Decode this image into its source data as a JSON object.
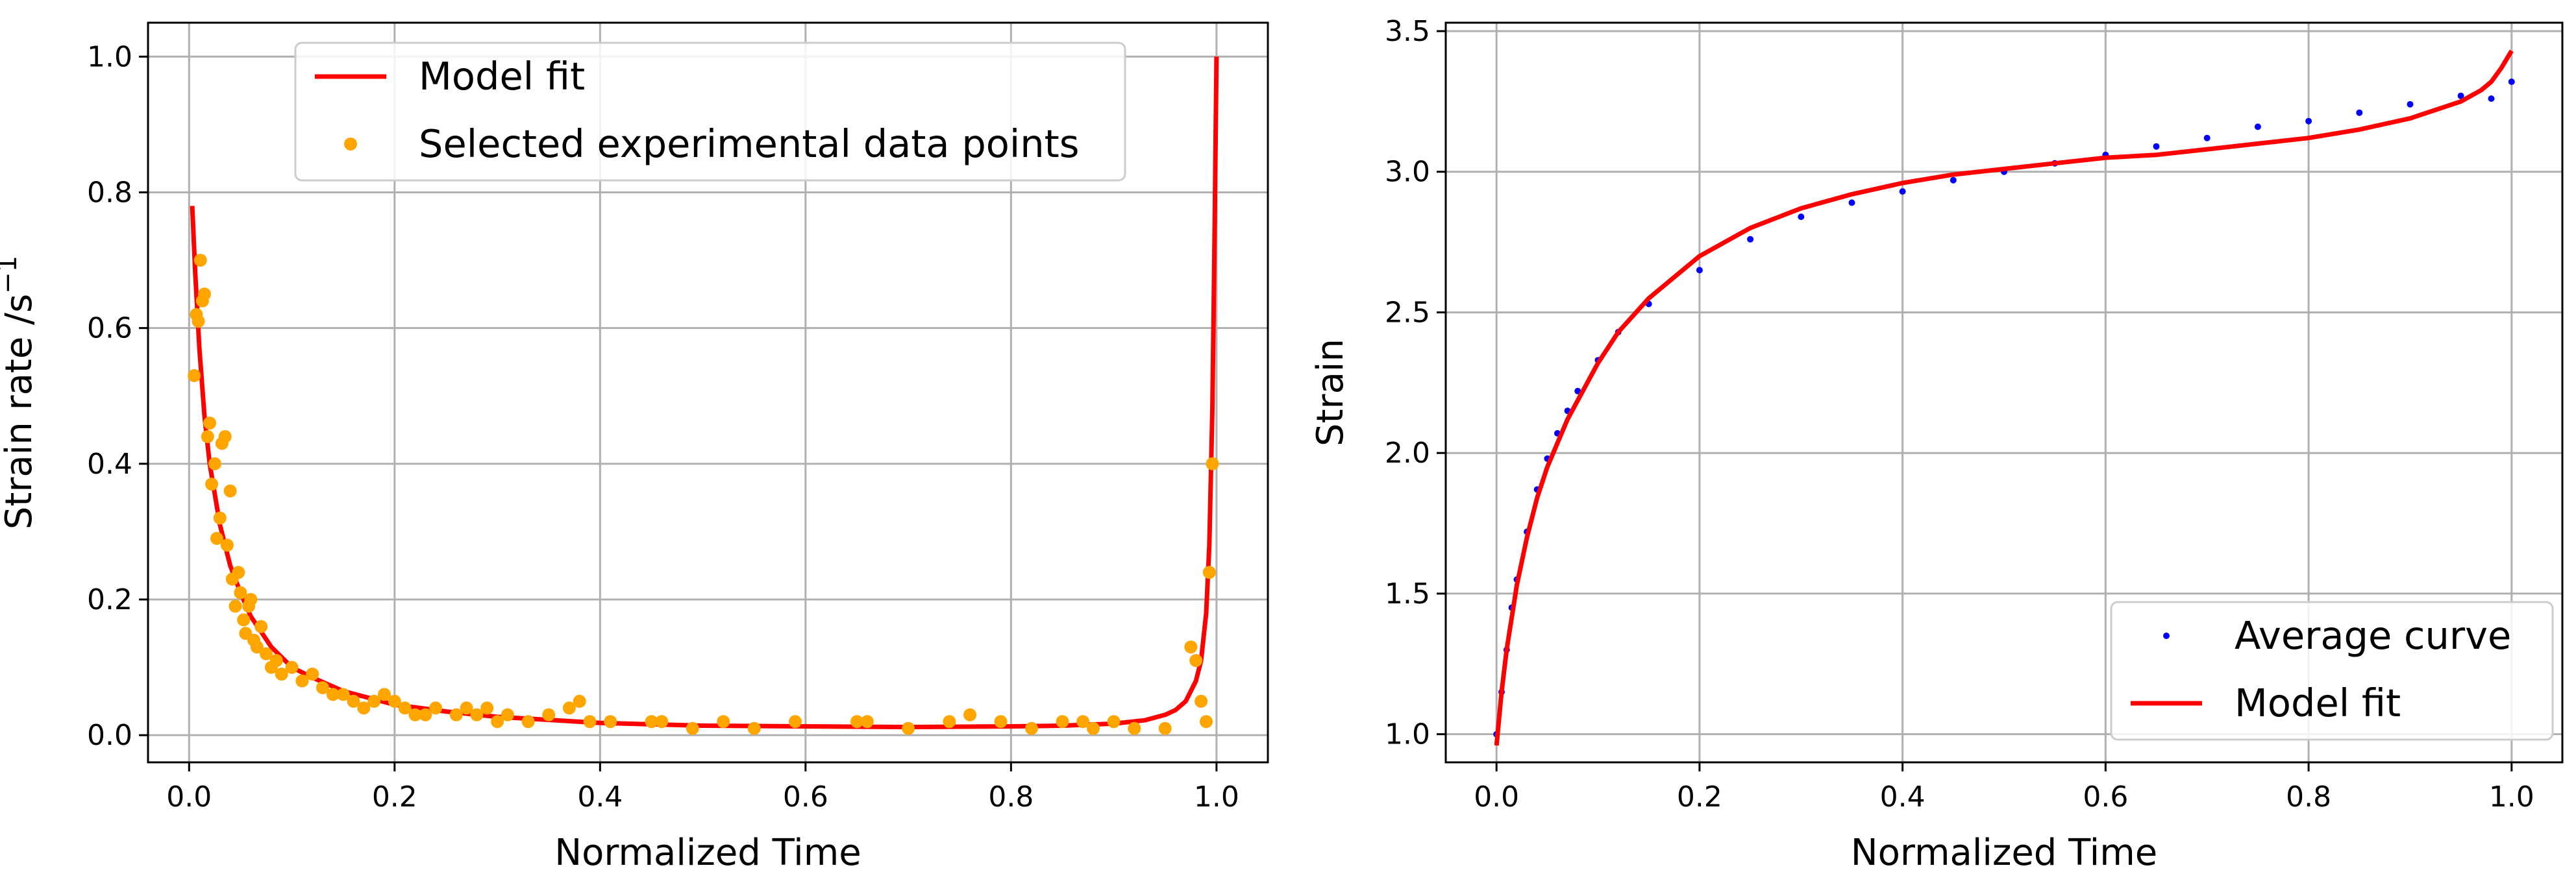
{
  "chart_data": [
    {
      "type": "line",
      "xlabel": "Normalized Time",
      "ylabel": "Strain rate /s",
      "ylabel_superscript": "−1",
      "xlim": [
        -0.04,
        1.05
      ],
      "ylim": [
        -0.04,
        1.05
      ],
      "xticks": [
        0.0,
        0.2,
        0.4,
        0.6,
        0.8,
        1.0
      ],
      "xtick_labels": [
        "0.0",
        "0.2",
        "0.4",
        "0.6",
        "0.8",
        "1.0"
      ],
      "yticks": [
        0.0,
        0.2,
        0.4,
        0.6,
        0.8,
        1.0
      ],
      "ytick_labels": [
        "0.0",
        "0.2",
        "0.4",
        "0.6",
        "0.8",
        "1.0"
      ],
      "grid": true,
      "legend_position": "top-center",
      "series": [
        {
          "name": "Model fit",
          "kind": "line",
          "color": "#ff0000",
          "x": [
            0.003,
            0.006,
            0.01,
            0.015,
            0.02,
            0.03,
            0.04,
            0.05,
            0.06,
            0.08,
            0.1,
            0.12,
            0.15,
            0.2,
            0.25,
            0.3,
            0.4,
            0.5,
            0.6,
            0.7,
            0.8,
            0.85,
            0.9,
            0.93,
            0.95,
            0.96,
            0.97,
            0.98,
            0.985,
            0.99,
            0.993,
            0.996,
            0.998,
            1.0
          ],
          "y": [
            0.78,
            0.68,
            0.57,
            0.47,
            0.4,
            0.31,
            0.25,
            0.21,
            0.175,
            0.13,
            0.1,
            0.085,
            0.065,
            0.045,
            0.035,
            0.027,
            0.018,
            0.014,
            0.013,
            0.012,
            0.013,
            0.014,
            0.017,
            0.022,
            0.03,
            0.037,
            0.05,
            0.08,
            0.11,
            0.18,
            0.28,
            0.48,
            0.72,
            1.0
          ]
        },
        {
          "name": "Selected experimental data points",
          "kind": "scatter",
          "color": "#ffa500",
          "x": [
            0.005,
            0.007,
            0.009,
            0.011,
            0.013,
            0.015,
            0.018,
            0.02,
            0.022,
            0.025,
            0.027,
            0.03,
            0.032,
            0.035,
            0.037,
            0.04,
            0.042,
            0.045,
            0.048,
            0.05,
            0.053,
            0.055,
            0.058,
            0.06,
            0.063,
            0.066,
            0.07,
            0.075,
            0.08,
            0.085,
            0.09,
            0.1,
            0.11,
            0.12,
            0.13,
            0.14,
            0.15,
            0.16,
            0.17,
            0.18,
            0.19,
            0.2,
            0.21,
            0.22,
            0.23,
            0.24,
            0.26,
            0.27,
            0.28,
            0.29,
            0.3,
            0.31,
            0.33,
            0.35,
            0.37,
            0.38,
            0.39,
            0.41,
            0.45,
            0.46,
            0.49,
            0.52,
            0.55,
            0.59,
            0.65,
            0.66,
            0.7,
            0.74,
            0.76,
            0.79,
            0.82,
            0.85,
            0.87,
            0.88,
            0.9,
            0.92,
            0.95,
            0.975,
            0.98,
            0.985,
            0.99,
            0.993,
            0.996
          ],
          "y": [
            0.53,
            0.62,
            0.61,
            0.7,
            0.64,
            0.65,
            0.44,
            0.46,
            0.37,
            0.4,
            0.29,
            0.32,
            0.43,
            0.44,
            0.28,
            0.36,
            0.23,
            0.19,
            0.24,
            0.21,
            0.17,
            0.15,
            0.19,
            0.2,
            0.14,
            0.13,
            0.16,
            0.12,
            0.1,
            0.11,
            0.09,
            0.1,
            0.08,
            0.09,
            0.07,
            0.06,
            0.06,
            0.05,
            0.04,
            0.05,
            0.06,
            0.05,
            0.04,
            0.03,
            0.03,
            0.04,
            0.03,
            0.04,
            0.03,
            0.04,
            0.02,
            0.03,
            0.02,
            0.03,
            0.04,
            0.05,
            0.02,
            0.02,
            0.02,
            0.02,
            0.01,
            0.02,
            0.01,
            0.02,
            0.02,
            0.02,
            0.01,
            0.02,
            0.03,
            0.02,
            0.01,
            0.02,
            0.02,
            0.01,
            0.02,
            0.01,
            0.01,
            0.13,
            0.11,
            0.05,
            0.02,
            0.24,
            0.4
          ]
        }
      ]
    },
    {
      "type": "line",
      "xlabel": "Normalized Time",
      "ylabel": "Strain",
      "xlim": [
        -0.05,
        1.05
      ],
      "ylim": [
        0.9,
        3.53
      ],
      "xticks": [
        0.0,
        0.2,
        0.4,
        0.6,
        0.8,
        1.0
      ],
      "xtick_labels": [
        "0.0",
        "0.2",
        "0.4",
        "0.6",
        "0.8",
        "1.0"
      ],
      "yticks": [
        1.0,
        1.5,
        2.0,
        2.5,
        3.0,
        3.5
      ],
      "ytick_labels": [
        "1.0",
        "1.5",
        "2.0",
        "2.5",
        "3.0",
        "3.5"
      ],
      "grid": true,
      "legend_position": "bottom-right",
      "series": [
        {
          "name": "Average curve",
          "kind": "scatter",
          "color": "#0000ff",
          "x": [
            0.0,
            0.005,
            0.01,
            0.015,
            0.02,
            0.03,
            0.04,
            0.05,
            0.06,
            0.07,
            0.08,
            0.1,
            0.12,
            0.15,
            0.2,
            0.25,
            0.3,
            0.35,
            0.4,
            0.45,
            0.5,
            0.55,
            0.6,
            0.65,
            0.7,
            0.75,
            0.8,
            0.85,
            0.9,
            0.95,
            0.98,
            1.0
          ],
          "y": [
            1.0,
            1.15,
            1.3,
            1.45,
            1.55,
            1.72,
            1.87,
            1.98,
            2.07,
            2.15,
            2.22,
            2.33,
            2.43,
            2.53,
            2.65,
            2.76,
            2.84,
            2.89,
            2.93,
            2.97,
            3.0,
            3.03,
            3.06,
            3.09,
            3.12,
            3.16,
            3.18,
            3.21,
            3.24,
            3.27,
            3.26,
            3.32
          ]
        },
        {
          "name": "Model fit",
          "kind": "line",
          "color": "#ff0000",
          "x": [
            0.0,
            0.005,
            0.01,
            0.02,
            0.03,
            0.04,
            0.05,
            0.07,
            0.1,
            0.12,
            0.15,
            0.2,
            0.25,
            0.3,
            0.35,
            0.4,
            0.45,
            0.5,
            0.55,
            0.6,
            0.65,
            0.7,
            0.75,
            0.8,
            0.85,
            0.9,
            0.95,
            0.97,
            0.98,
            0.99,
            0.995,
            1.0
          ],
          "y": [
            0.96,
            1.15,
            1.3,
            1.53,
            1.7,
            1.84,
            1.95,
            2.12,
            2.32,
            2.43,
            2.55,
            2.7,
            2.8,
            2.87,
            2.92,
            2.96,
            2.99,
            3.01,
            3.03,
            3.05,
            3.06,
            3.08,
            3.1,
            3.12,
            3.15,
            3.19,
            3.25,
            3.29,
            3.32,
            3.37,
            3.4,
            3.43
          ]
        }
      ]
    }
  ]
}
